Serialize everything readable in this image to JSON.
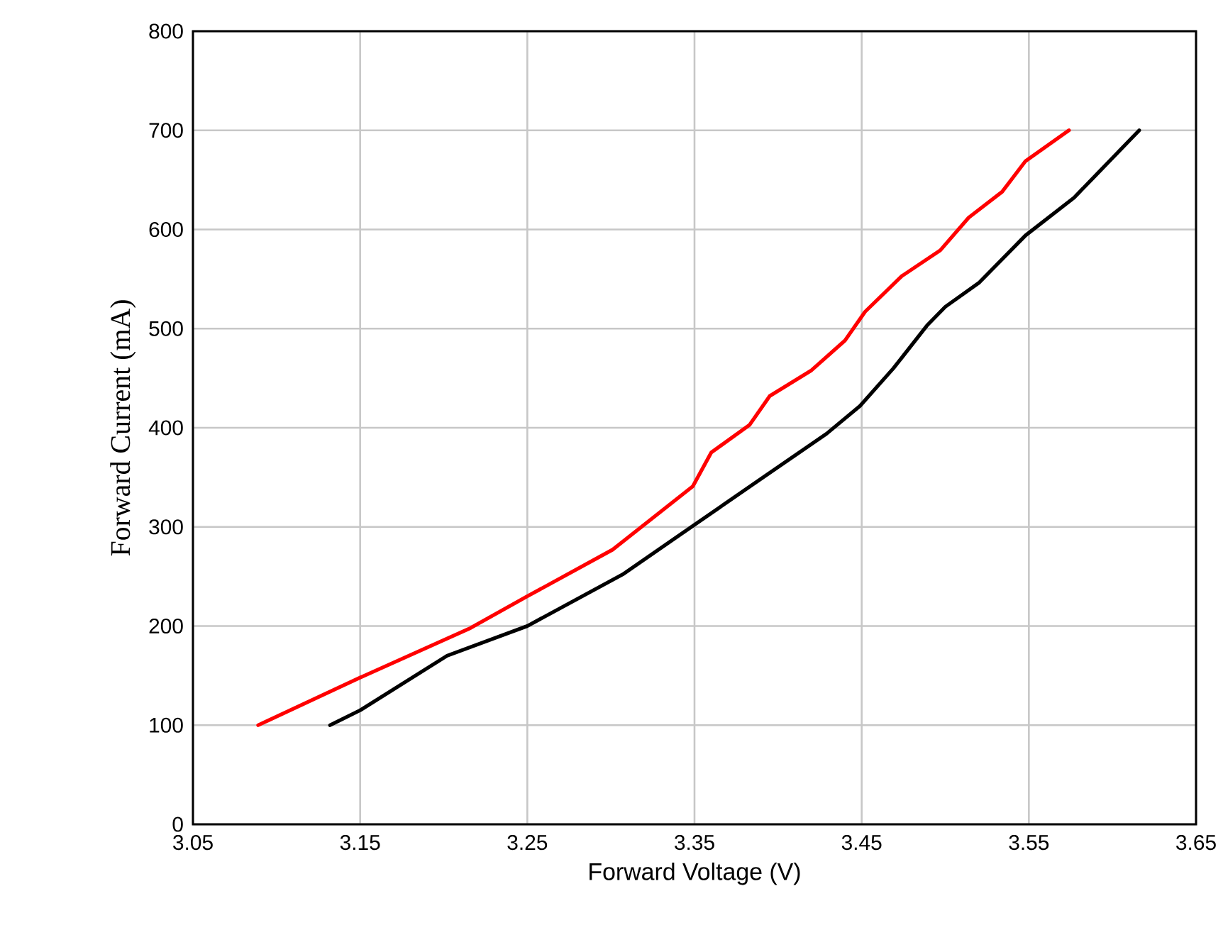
{
  "chart_data": {
    "type": "line",
    "xlabel": "Forward Voltage (V)",
    "ylabel": "Forward Current (mA)",
    "xlim": [
      3.05,
      3.65
    ],
    "ylim": [
      0,
      800
    ],
    "xticks": [
      3.05,
      3.15,
      3.25,
      3.35,
      3.45,
      3.55,
      3.65
    ],
    "yticks": [
      0,
      100,
      200,
      300,
      400,
      500,
      600,
      700,
      800
    ],
    "grid": true,
    "marker": "none",
    "line_style": "solid",
    "series": [
      {
        "color": "#ff0000",
        "x": [
          3.089,
          3.15,
          3.216,
          3.25,
          3.301,
          3.349,
          3.36,
          3.383,
          3.395,
          3.42,
          3.44,
          3.452,
          3.474,
          3.497,
          3.514,
          3.534,
          3.548,
          3.574
        ],
        "values": [
          100,
          148,
          198,
          230,
          277,
          341,
          375,
          403,
          432,
          458,
          488,
          517,
          553,
          579,
          612,
          638,
          669,
          700
        ]
      },
      {
        "color": "#000000",
        "x": [
          3.132,
          3.15,
          3.202,
          3.25,
          3.307,
          3.349,
          3.392,
          3.429,
          3.449,
          3.469,
          3.489,
          3.5,
          3.52,
          3.548,
          3.577,
          3.616
        ],
        "values": [
          100,
          115,
          170,
          200,
          252,
          301,
          351,
          394,
          422,
          460,
          503,
          522,
          546,
          594,
          632,
          700
        ]
      }
    ]
  }
}
